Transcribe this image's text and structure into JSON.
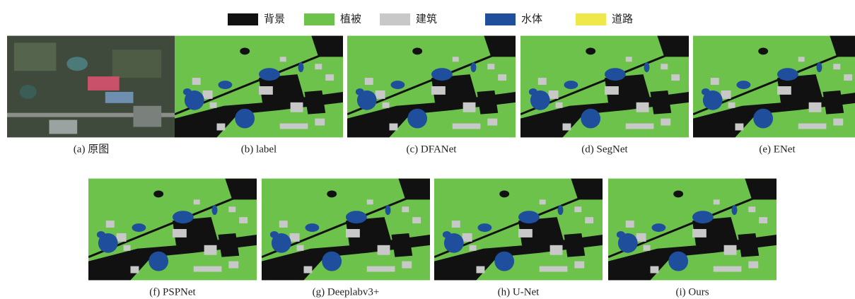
{
  "legend": [
    {
      "label": "背景",
      "color": "#111111"
    },
    {
      "label": "植被",
      "color": "#6cc24a"
    },
    {
      "label": "建筑",
      "color": "#c8c8c8"
    },
    {
      "label": "水体",
      "color": "#1f4e9c"
    },
    {
      "label": "道路",
      "color": "#efe84a"
    }
  ],
  "panels": [
    {
      "caption": "(a) 原图"
    },
    {
      "caption": "(b) label"
    },
    {
      "caption": "(c) DFANet"
    },
    {
      "caption": "(d) SegNet"
    },
    {
      "caption": "(e) ENet"
    },
    {
      "caption": "(f) PSPNet"
    },
    {
      "caption": "(g) Deeplabv3+"
    },
    {
      "caption": "(h) U-Net"
    },
    {
      "caption": "(i) Ours"
    }
  ]
}
